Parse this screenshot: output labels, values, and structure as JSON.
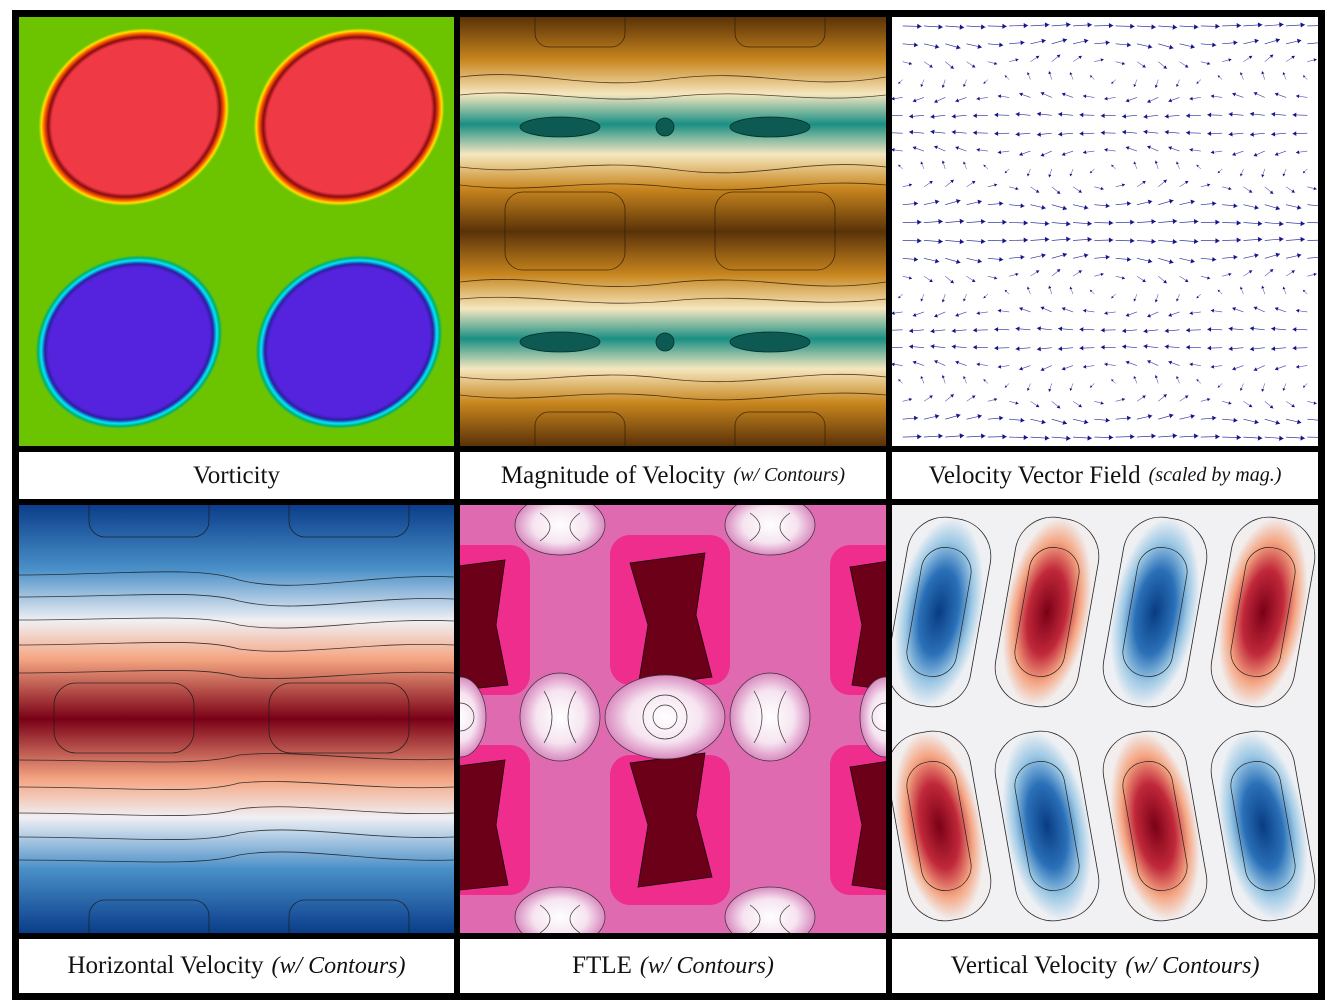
{
  "panels": [
    {
      "id": "vorticity",
      "title": "Vorticity",
      "note": ""
    },
    {
      "id": "velocity-magnitude",
      "title": "Magnitude of Velocity",
      "note": "(w/ Contours)"
    },
    {
      "id": "velocity-vector-field",
      "title": "Velocity Vector Field",
      "note": "(scaled by mag.)"
    },
    {
      "id": "horizontal-velocity",
      "title": "Horizontal Velocity",
      "note": "(w/ Contours)"
    },
    {
      "id": "ftle",
      "title": "FTLE",
      "note": "(w/ Contours)"
    },
    {
      "id": "vertical-velocity",
      "title": "Vertical Velocity",
      "note": "(w/ Contours)"
    }
  ],
  "colors": {
    "border": "#000000",
    "vorticity_background": "#6cc400",
    "vorticity_positive": "#ef3a45",
    "vorticity_negative": "#5522dd",
    "magnitude_high": "#5a3208",
    "magnitude_low": "#1a8f84",
    "vector_arrow": "#14148c",
    "horizontal_positive": "#7a0016",
    "horizontal_negative": "#0a3d8a",
    "ftle_high": "#6b0018",
    "ftle_mid": "#e04aa8",
    "vertical_positive": "#b4182a",
    "vertical_negative": "#1a5fa8"
  }
}
